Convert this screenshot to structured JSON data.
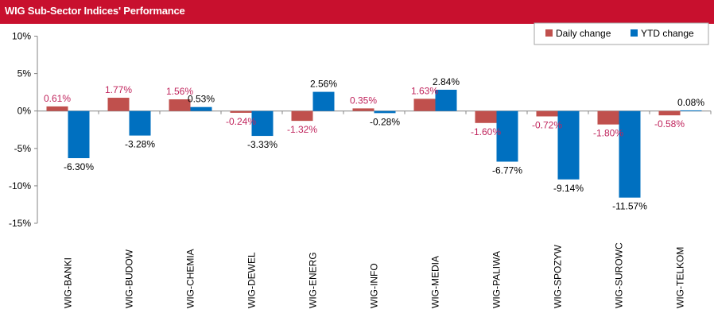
{
  "header": {
    "title": "WIG Sub-Sector Indices' Performance"
  },
  "chart_data": {
    "type": "bar",
    "title": "WIG Sub-Sector Indices' Performance",
    "xlabel": "",
    "ylabel": "",
    "ylim": [
      -15,
      10
    ],
    "yticks": [
      10,
      5,
      0,
      -5,
      -10,
      -15
    ],
    "ytick_labels": [
      "10%",
      "5%",
      "0%",
      "-5%",
      "-10%",
      "-15%"
    ],
    "categories": [
      "WIG-BANKI",
      "WIG-BUDOW",
      "WIG-CHEMIA",
      "WIG-DEWEL",
      "WIG-ENERG",
      "WIG-INFO",
      "WIG-MEDIA",
      "WIG-PALIWA",
      "WIG-SPOZYW",
      "WIG-SUROWC",
      "WIG-TELKOM"
    ],
    "series": [
      {
        "name": "Daily change",
        "color": "#c0504d",
        "label_color": "#c0245c",
        "values": [
          0.61,
          1.77,
          1.56,
          -0.24,
          -1.32,
          0.35,
          1.63,
          -1.6,
          -0.72,
          -1.8,
          -0.58
        ],
        "labels": [
          "0.61%",
          "1.77%",
          "1.56%",
          "-0.24%",
          "-1.32%",
          "0.35%",
          "1.63%",
          "-1.60%",
          "-0.72%",
          "-1.80%",
          "-0.58%"
        ]
      },
      {
        "name": "YTD change",
        "color": "#0070c0",
        "label_color": "#000000",
        "values": [
          -6.3,
          -3.28,
          0.53,
          -3.33,
          2.56,
          -0.28,
          2.84,
          -6.77,
          -9.14,
          -11.57,
          0.08
        ],
        "labels": [
          "-6.30%",
          "-3.28%",
          "0.53%",
          "-3.33%",
          "2.56%",
          "-0.28%",
          "2.84%",
          "-6.77%",
          "-9.14%",
          "-11.57%",
          "0.08%"
        ]
      }
    ],
    "legend": {
      "position": "top-right"
    },
    "grid": false
  }
}
